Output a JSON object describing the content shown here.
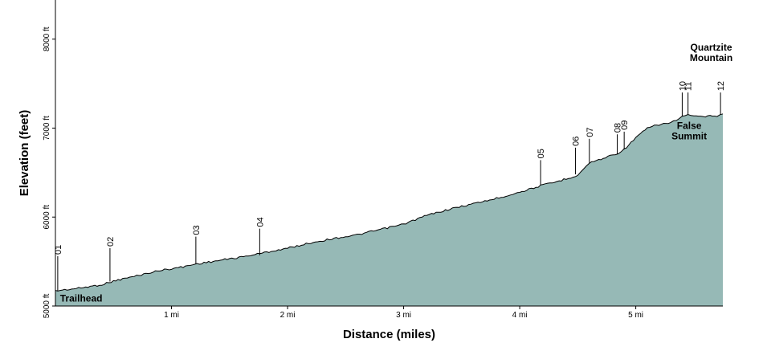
{
  "chart_data": {
    "type": "area",
    "title": "",
    "xlabel": "Distance (miles)",
    "ylabel": "Elevation (feet)",
    "xlim": [
      0,
      5.75
    ],
    "ylim": [
      5000,
      8440
    ],
    "grid": false,
    "fill_color": "#96b9b6",
    "line_color": "#000000",
    "x_ticks": [
      {
        "value": 1,
        "label": "1 mi"
      },
      {
        "value": 2,
        "label": "2 mi"
      },
      {
        "value": 3,
        "label": "3 mi"
      },
      {
        "value": 4,
        "label": "4 mi"
      },
      {
        "value": 5,
        "label": "5 mi"
      }
    ],
    "y_ticks": [
      {
        "value": 5000,
        "label": "5000 ft"
      },
      {
        "value": 6000,
        "label": "6000 ft"
      },
      {
        "value": 7000,
        "label": "7000 ft"
      },
      {
        "value": 8000,
        "label": "8000 ft"
      }
    ],
    "series": [
      {
        "x": [
          0,
          0.1,
          0.2,
          0.3,
          0.4,
          0.5,
          0.6,
          0.7,
          0.8,
          0.9,
          1.0,
          1.1,
          1.2,
          1.3,
          1.4,
          1.5,
          1.6,
          1.7,
          1.8,
          1.9,
          2.0,
          2.2,
          2.4,
          2.6,
          2.8,
          3.0,
          3.2,
          3.4,
          3.6,
          3.8,
          4.0,
          4.1,
          4.2,
          4.3,
          4.4,
          4.5,
          4.55,
          4.6,
          4.7,
          4.8,
          4.85,
          4.9,
          5.0,
          5.1,
          5.2,
          5.3,
          5.35,
          5.4,
          5.45,
          5.5,
          5.6,
          5.7,
          5.75
        ],
        "y": [
          5170,
          5185,
          5200,
          5220,
          5240,
          5280,
          5310,
          5340,
          5370,
          5400,
          5420,
          5440,
          5470,
          5490,
          5510,
          5530,
          5550,
          5575,
          5600,
          5625,
          5650,
          5710,
          5760,
          5800,
          5860,
          5920,
          6020,
          6090,
          6150,
          6210,
          6280,
          6320,
          6360,
          6390,
          6430,
          6470,
          6540,
          6610,
          6650,
          6700,
          6720,
          6760,
          6890,
          7000,
          7040,
          7060,
          7090,
          7130,
          7150,
          7130,
          7130,
          7140,
          7160
        ]
      }
    ],
    "waypoints": [
      {
        "label": "01",
        "x": 0.02,
        "y": 5170,
        "top_y": 5560
      },
      {
        "label": "02",
        "x": 0.47,
        "y": 5275,
        "top_y": 5650
      },
      {
        "label": "03",
        "x": 1.21,
        "y": 5470,
        "top_y": 5780
      },
      {
        "label": "04",
        "x": 1.76,
        "y": 5570,
        "top_y": 5870
      },
      {
        "label": "05",
        "x": 4.18,
        "y": 6360,
        "top_y": 6640
      },
      {
        "label": "06",
        "x": 4.48,
        "y": 6480,
        "top_y": 6780
      },
      {
        "label": "07",
        "x": 4.6,
        "y": 6610,
        "top_y": 6880
      },
      {
        "label": "08",
        "x": 4.84,
        "y": 6710,
        "top_y": 6930
      },
      {
        "label": "09",
        "x": 4.9,
        "y": 6760,
        "top_y": 6960
      },
      {
        "label": "10",
        "x": 5.4,
        "y": 7130,
        "top_y": 7400
      },
      {
        "label": "11",
        "x": 5.45,
        "y": 7150,
        "top_y": 7400
      },
      {
        "label": "12",
        "x": 5.73,
        "y": 7150,
        "top_y": 7400
      }
    ],
    "annotations": [
      {
        "lines": [
          "Trailhead"
        ],
        "x": 0.04,
        "y": 5050,
        "anchor": "start"
      },
      {
        "lines": [
          "False",
          "Summit"
        ],
        "x": 5.46,
        "y": 6990,
        "anchor": "middle"
      },
      {
        "lines": [
          "Quartzite",
          "Mountain"
        ],
        "x": 5.65,
        "y": 7870,
        "anchor": "middle"
      }
    ]
  }
}
